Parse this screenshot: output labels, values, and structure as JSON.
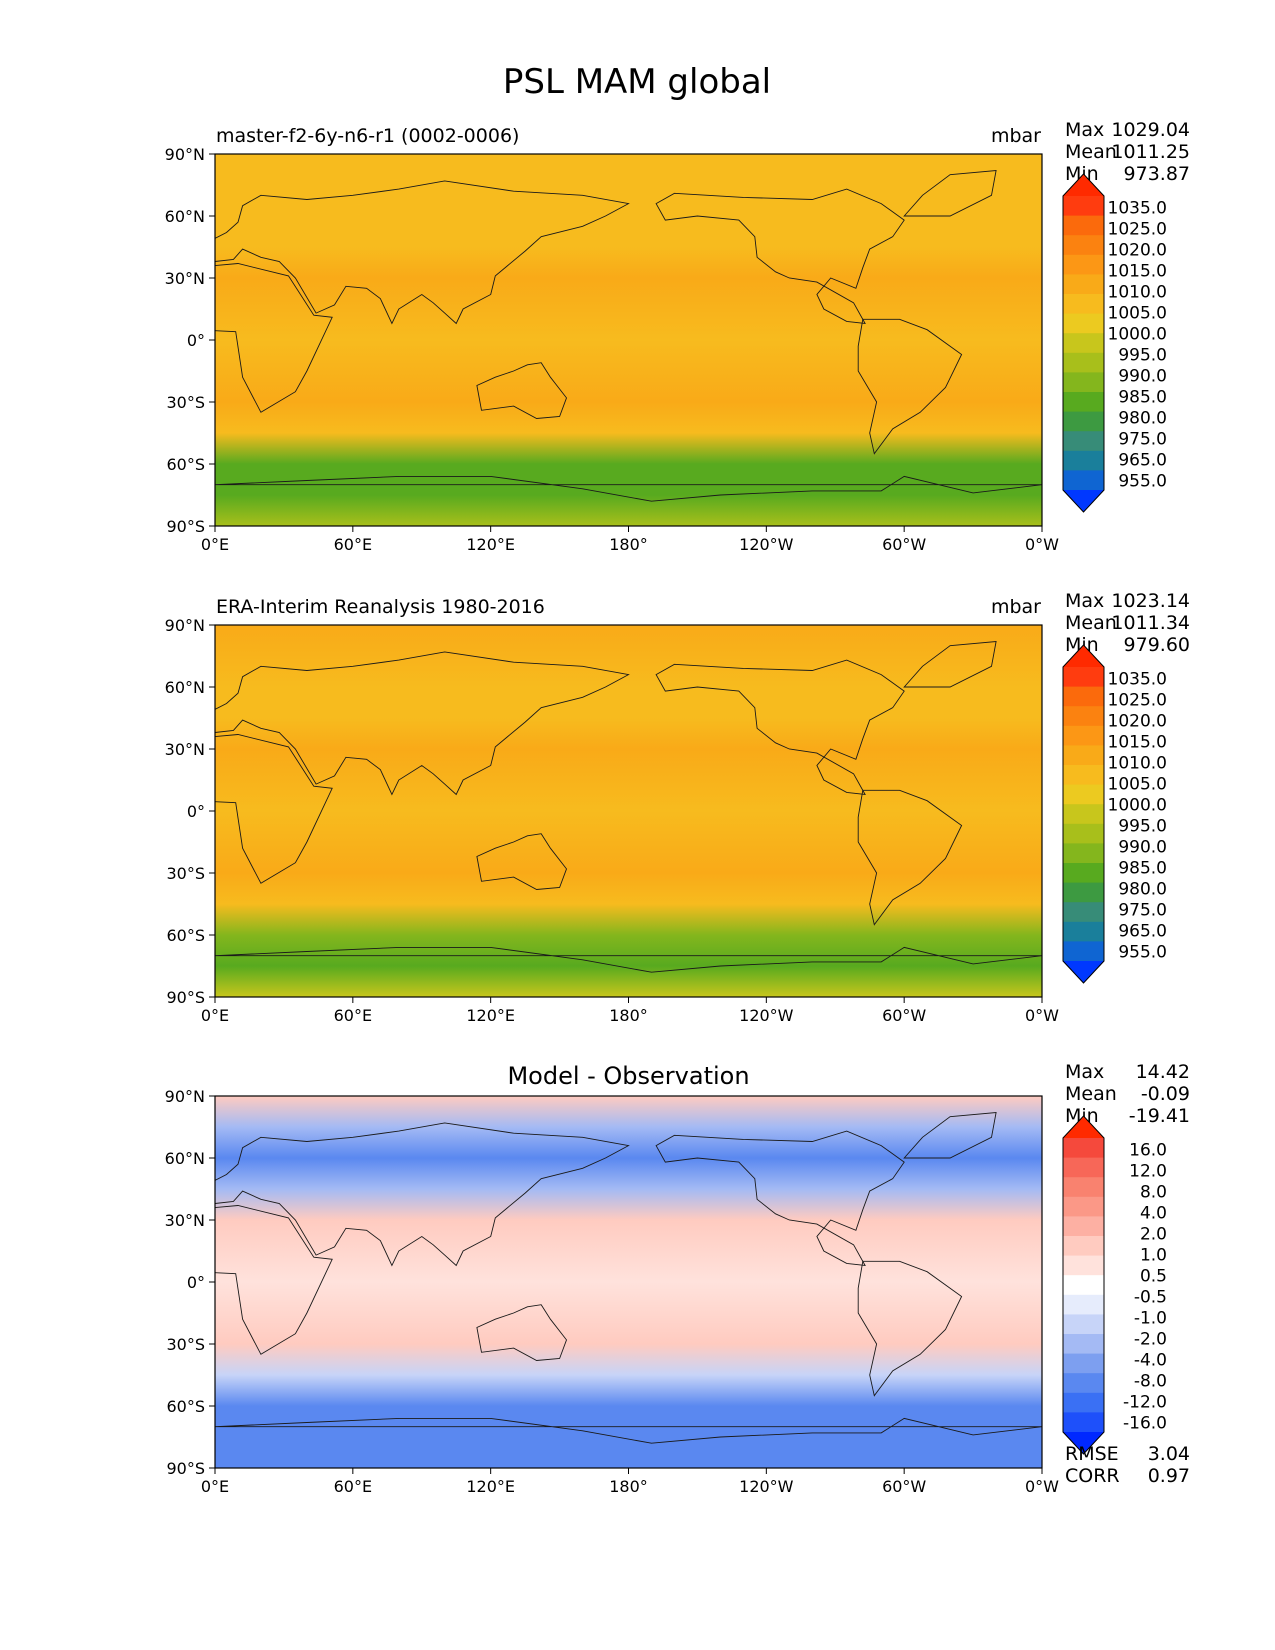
{
  "figure": {
    "title": "PSL MAM global"
  },
  "lat_labels": [
    "90°N",
    "60°N",
    "30°N",
    "0°",
    "30°S",
    "60°S",
    "90°S"
  ],
  "lon_labels": [
    "0°E",
    "60°E",
    "120°E",
    "180°",
    "120°W",
    "60°W",
    "0°W"
  ],
  "colors": {
    "abs": [
      "#0038ff",
      "#0f65d2",
      "#1a7f9b",
      "#378c78",
      "#3d9a41",
      "#58aa1f",
      "#84b61d",
      "#a8bf1b",
      "#c8c61c",
      "#ecca20",
      "#f7bb1e",
      "#f9aa18",
      "#fc9715",
      "#fb8210",
      "#fb6a0c",
      "#ff3c0f",
      "#ff2a00"
    ],
    "diff": [
      "#0028ff",
      "#1e50fa",
      "#3a70f4",
      "#5a88f0",
      "#7d9ff0",
      "#a4baf4",
      "#c7d4f8",
      "#e6ecfc",
      "#ffffff",
      "#ffe2dc",
      "#ffcbc0",
      "#fdb0a3",
      "#fb9887",
      "#f9826f",
      "#f76758",
      "#f5493c",
      "#ff2a00"
    ]
  },
  "panels": [
    {
      "id": "model",
      "left_title": "master-f2-6y-n6-r1 (0002-0006)",
      "right_title": "mbar",
      "center_title": "",
      "stats": [
        {
          "label": "Max",
          "value": "1029.04"
        },
        {
          "label": "Mean",
          "value": "1011.25"
        },
        {
          "label": "Min",
          "value": "973.87"
        }
      ],
      "colorbar_ticks": [
        "1035.0",
        "1025.0",
        "1020.0",
        "1015.0",
        "1010.0",
        "1005.0",
        "1000.0",
        "995.0",
        "990.0",
        "985.0",
        "980.0",
        "975.0",
        "965.0",
        "955.0"
      ],
      "extra_stats": [],
      "colormap": "abs"
    },
    {
      "id": "obs",
      "left_title": "ERA-Interim Reanalysis 1980-2016",
      "right_title": "mbar",
      "center_title": "",
      "stats": [
        {
          "label": "Max",
          "value": "1023.14"
        },
        {
          "label": "Mean",
          "value": "1011.34"
        },
        {
          "label": "Min",
          "value": "979.60"
        }
      ],
      "colorbar_ticks": [
        "1035.0",
        "1025.0",
        "1020.0",
        "1015.0",
        "1010.0",
        "1005.0",
        "1000.0",
        "995.0",
        "990.0",
        "985.0",
        "980.0",
        "975.0",
        "965.0",
        "955.0"
      ],
      "extra_stats": [],
      "colormap": "abs"
    },
    {
      "id": "diff",
      "left_title": "",
      "right_title": "",
      "center_title": "Model - Observation",
      "stats": [
        {
          "label": "Max",
          "value": "14.42"
        },
        {
          "label": "Mean",
          "value": "-0.09"
        },
        {
          "label": "Min",
          "value": "-19.41"
        }
      ],
      "colorbar_ticks": [
        "16.0",
        "12.0",
        "8.0",
        "4.0",
        "2.0",
        "1.0",
        "0.5",
        "-0.5",
        "-1.0",
        "-2.0",
        "-4.0",
        "-8.0",
        "-12.0",
        "-16.0"
      ],
      "extra_stats": [
        {
          "label": "RMSE",
          "value": "3.04"
        },
        {
          "label": "CORR",
          "value": "0.97"
        }
      ],
      "colormap": "diff"
    }
  ],
  "chart_data": [
    {
      "type": "heatmap",
      "title": "master-f2-6y-n6-r1 (0002-0006)",
      "units": "mbar",
      "zonal_profile": {
        "lat": [
          90,
          60,
          45,
          30,
          0,
          -30,
          -45,
          -60,
          -75,
          -90
        ],
        "value": [
          1013,
          1012,
          1014,
          1017,
          1012,
          1017,
          1010,
          985,
          985,
          997
        ]
      },
      "stats": {
        "max": 1029.04,
        "mean": 1011.25,
        "min": 973.87
      },
      "levels": [
        955,
        965,
        975,
        980,
        985,
        990,
        995,
        1000,
        1005,
        1010,
        1015,
        1020,
        1025,
        1035
      ]
    },
    {
      "type": "heatmap",
      "title": "ERA-Interim Reanalysis 1980-2016",
      "units": "mbar",
      "zonal_profile": {
        "lat": [
          90,
          60,
          45,
          30,
          0,
          -30,
          -45,
          -60,
          -75,
          -90
        ],
        "value": [
          1015,
          1012,
          1014,
          1016,
          1010,
          1017,
          1012,
          990,
          988,
          1000
        ]
      },
      "stats": {
        "max": 1023.14,
        "mean": 1011.34,
        "min": 979.6
      },
      "levels": [
        955,
        965,
        975,
        980,
        985,
        990,
        995,
        1000,
        1005,
        1010,
        1015,
        1020,
        1025,
        1035
      ]
    },
    {
      "type": "heatmap",
      "title": "Model - Observation",
      "units": "mbar",
      "zonal_profile": {
        "lat": [
          90,
          75,
          60,
          45,
          30,
          0,
          -30,
          -45,
          -60,
          -75,
          -90
        ],
        "value": [
          3,
          -2,
          -5,
          -2,
          3,
          1,
          2,
          -1,
          -5,
          -6,
          -6
        ]
      },
      "stats": {
        "max": 14.42,
        "mean": -0.09,
        "min": -19.41,
        "rmse": 3.04,
        "corr": 0.97
      },
      "levels": [
        -16,
        -12,
        -8,
        -4,
        -2,
        -1,
        -0.5,
        0.5,
        1,
        2,
        4,
        8,
        12,
        16
      ]
    }
  ]
}
